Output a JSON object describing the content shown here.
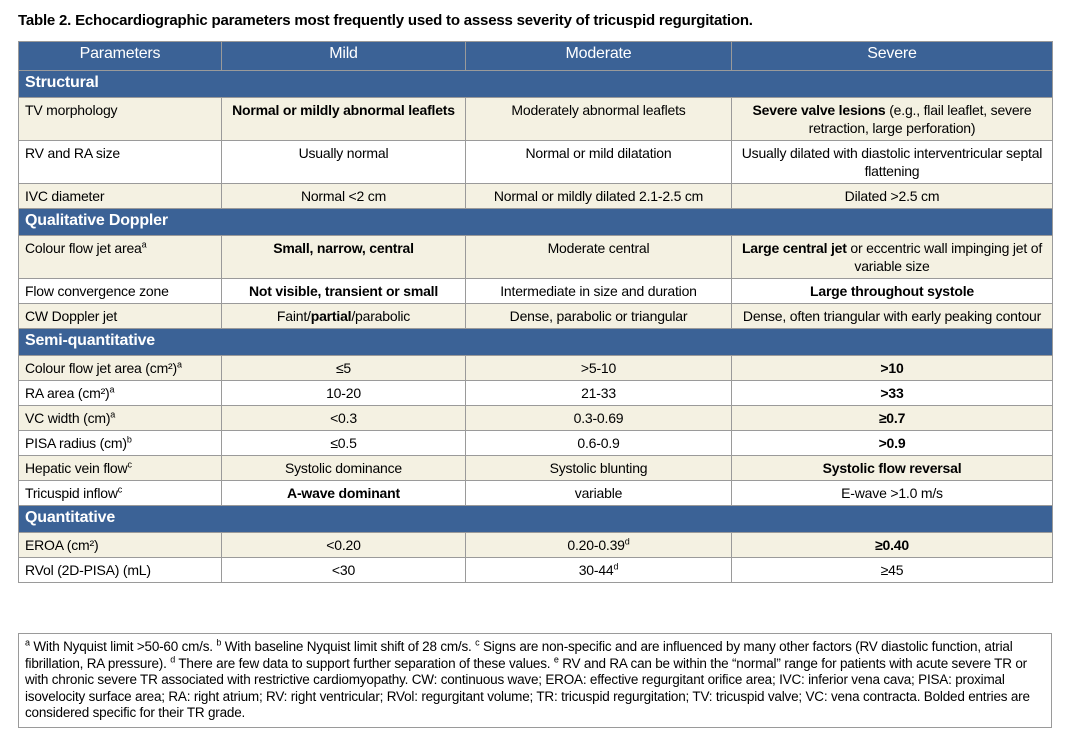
{
  "title": "Table 2. Echocardiographic parameters most frequently used to assess severity of tricuspid regurgitation.",
  "table": {
    "header": [
      "Parameters",
      "Mild",
      "Moderate",
      "Severe"
    ],
    "sections": [
      {
        "title": "Structural",
        "rows": [
          [
            [
              {
                "t": "TV morphology"
              }
            ],
            [
              {
                "t": "Normal or mildly abnormal leaflets",
                "bold": true
              }
            ],
            [
              {
                "t": "Moderately abnormal leaflets"
              }
            ],
            [
              {
                "t": "Severe valve lesions",
                "bold": true
              },
              {
                "t": " (e.g., flail leaflet, severe retraction, large perforation)"
              }
            ]
          ],
          [
            [
              {
                "t": "RV and RA size"
              }
            ],
            [
              {
                "t": "Usually normal"
              }
            ],
            [
              {
                "t": "Normal or mild dilatation"
              }
            ],
            [
              {
                "t": "Usually dilated with diastolic interventricular septal flattening"
              }
            ]
          ],
          [
            [
              {
                "t": "IVC diameter"
              }
            ],
            [
              {
                "t": "Normal <2 cm"
              }
            ],
            [
              {
                "t": "Normal or mildly dilated 2.1-2.5 cm"
              }
            ],
            [
              {
                "t": "Dilated >2.5 cm"
              }
            ]
          ]
        ]
      },
      {
        "title": "Qualitative Doppler",
        "rows": [
          [
            [
              {
                "t": "Colour flow jet area"
              },
              {
                "t": "a",
                "sup": true
              }
            ],
            [
              {
                "t": "Small, narrow, central",
                "bold": true
              }
            ],
            [
              {
                "t": "Moderate central"
              }
            ],
            [
              {
                "t": "Large central jet",
                "bold": true
              },
              {
                "t": " or eccentric wall impinging jet of variable size"
              }
            ]
          ],
          [
            [
              {
                "t": "Flow convergence zone"
              }
            ],
            [
              {
                "t": "Not visible, transient or small",
                "bold": true
              }
            ],
            [
              {
                "t": "Intermediate in size and duration"
              }
            ],
            [
              {
                "t": "Large throughout systole",
                "bold": true
              }
            ]
          ],
          [
            [
              {
                "t": "CW Doppler jet"
              }
            ],
            [
              {
                "t": "Faint/"
              },
              {
                "t": "partial",
                "bold": true
              },
              {
                "t": "/parabolic"
              }
            ],
            [
              {
                "t": "Dense, parabolic or triangular"
              }
            ],
            [
              {
                "t": "Dense, often triangular with early peaking contour"
              }
            ]
          ]
        ]
      },
      {
        "title": "Semi-quantitative",
        "rows": [
          [
            [
              {
                "t": "Colour flow jet area (cm²)"
              },
              {
                "t": "a",
                "sup": true
              }
            ],
            [
              {
                "t": "≤5"
              }
            ],
            [
              {
                "t": ">5-10"
              }
            ],
            [
              {
                "t": ">10",
                "bold": true
              }
            ]
          ],
          [
            [
              {
                "t": "RA area (cm²)"
              },
              {
                "t": "a",
                "sup": true
              }
            ],
            [
              {
                "t": "10-20"
              }
            ],
            [
              {
                "t": "21-33"
              }
            ],
            [
              {
                "t": ">33",
                "bold": true
              }
            ]
          ],
          [
            [
              {
                "t": "VC width (cm)"
              },
              {
                "t": "a",
                "sup": true
              }
            ],
            [
              {
                "t": "<0.3"
              }
            ],
            [
              {
                "t": "0.3-0.69"
              }
            ],
            [
              {
                "t": "≥0.7",
                "bold": true
              }
            ]
          ],
          [
            [
              {
                "t": "PISA radius (cm)"
              },
              {
                "t": "b",
                "sup": true
              }
            ],
            [
              {
                "t": "≤0.5"
              }
            ],
            [
              {
                "t": "0.6-0.9"
              }
            ],
            [
              {
                "t": ">0.9",
                "bold": true
              }
            ]
          ],
          [
            [
              {
                "t": "Hepatic vein flow"
              },
              {
                "t": "c",
                "sup": true
              }
            ],
            [
              {
                "t": "Systolic dominance"
              }
            ],
            [
              {
                "t": "Systolic blunting"
              }
            ],
            [
              {
                "t": "Systolic flow reversal",
                "bold": true
              }
            ]
          ],
          [
            [
              {
                "t": "Tricuspid inflow"
              },
              {
                "t": "c",
                "sup": true
              }
            ],
            [
              {
                "t": "A-wave dominant",
                "bold": true
              }
            ],
            [
              {
                "t": "variable"
              }
            ],
            [
              {
                "t": "E-wave >1.0 m/s"
              }
            ]
          ]
        ]
      },
      {
        "title": "Quantitative",
        "rows": [
          [
            [
              {
                "t": "EROA (cm²)"
              }
            ],
            [
              {
                "t": "<0.20"
              }
            ],
            [
              {
                "t": "0.20-0.39"
              },
              {
                "t": "d",
                "sup": true
              }
            ],
            [
              {
                "t": "≥0.40",
                "bold": true
              }
            ]
          ],
          [
            [
              {
                "t": "RVol (2D-PISA) (mL)"
              }
            ],
            [
              {
                "t": "<30"
              }
            ],
            [
              {
                "t": "30-44"
              },
              {
                "t": "d",
                "sup": true
              }
            ],
            [
              {
                "t": "≥45"
              }
            ]
          ]
        ]
      }
    ]
  },
  "footnote": [
    {
      "t": "a",
      "sup": true
    },
    {
      "t": " With Nyquist limit >50-60 cm/s. "
    },
    {
      "t": "b",
      "sup": true
    },
    {
      "t": " With baseline Nyquist limit shift of 28 cm/s. "
    },
    {
      "t": "c",
      "sup": true
    },
    {
      "t": " Signs are non-specific and are influenced by many other factors (RV diastolic function, atrial fibrillation, RA pressure). "
    },
    {
      "t": "d",
      "sup": true
    },
    {
      "t": " There are few data to support further separation of these values. "
    },
    {
      "t": "e",
      "sup": true
    },
    {
      "t": " RV and RA can be within the “normal” range for patients with acute severe TR or with chronic severe TR associated with restrictive cardiomyopathy. CW: continuous wave; EROA: effective regurgitant orifice area; IVC: inferior vena cava; PISA: proximal isovelocity surface area; RA: right atrium; RV: right ventricular; RVol: regurgitant volume; TR: tricuspid regurgitation; TV: tricuspid valve; VC: vena contracta. Bolded entries are considered specific for their TR grade."
    }
  ]
}
